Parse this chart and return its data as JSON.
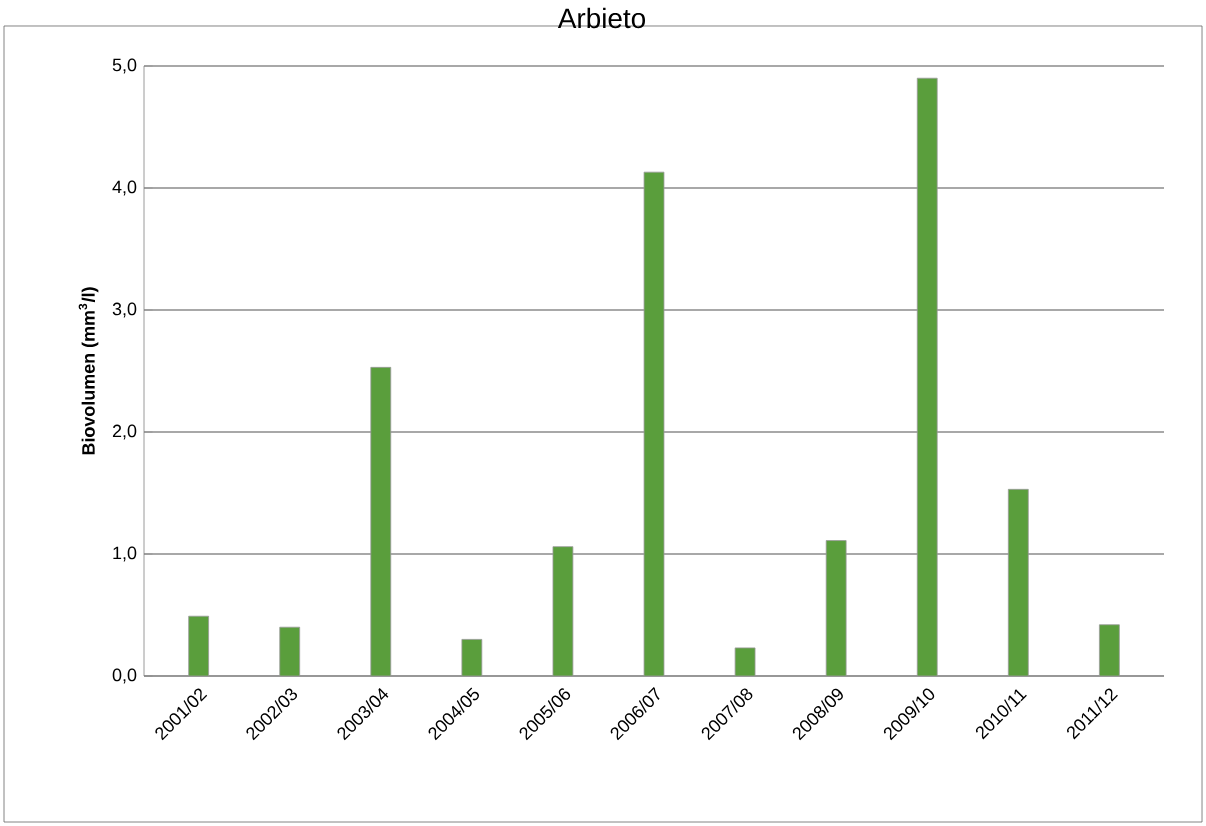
{
  "chart_data": {
    "type": "bar",
    "title": "Arbieto",
    "ylabel": "Biovolumen (mm$^{3}$/l)",
    "categories": [
      "2001/02",
      "2002/03",
      "2003/04",
      "2004/05",
      "2005/06",
      "2006/07",
      "2007/08",
      "2008/09",
      "2009/10",
      "2010/11",
      "2011/12"
    ],
    "values": [
      0.49,
      0.4,
      2.53,
      0.3,
      1.06,
      4.13,
      0.23,
      1.11,
      4.9,
      1.53,
      0.42
    ],
    "color": "#5a9e3c",
    "ylim": [
      0,
      5
    ],
    "yticks": [
      {
        "value": 0,
        "label": "0,0"
      },
      {
        "value": 1,
        "label": "1,0"
      },
      {
        "value": 2,
        "label": "2,0"
      },
      {
        "value": 3,
        "label": "3,0"
      },
      {
        "value": 4,
        "label": "4,0"
      },
      {
        "value": 5,
        "label": "5,0"
      }
    ],
    "grid": "y"
  }
}
